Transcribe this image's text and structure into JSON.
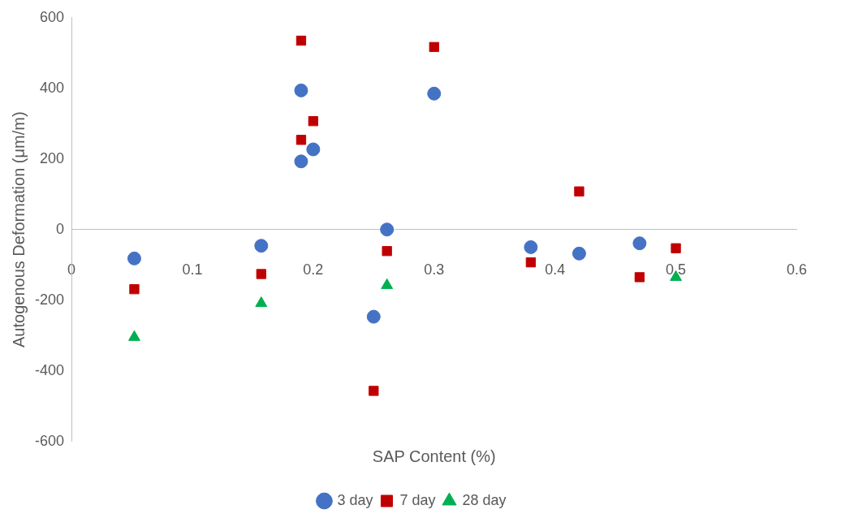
{
  "chart_data": {
    "type": "scatter",
    "xlabel": "SAP Content (%)",
    "ylabel": "Autogenous Deformation (μm/m)",
    "xlim": [
      0,
      0.6
    ],
    "xticks": [
      0,
      0.1,
      0.2,
      0.3,
      0.4,
      0.5,
      0.6
    ],
    "ylim": [
      -600,
      600
    ],
    "yticks": [
      -600,
      -400,
      -200,
      0,
      200,
      400,
      600
    ],
    "grid": false,
    "legend": "bottom",
    "series": [
      {
        "name": "3 day",
        "color": "#4472c4",
        "marker": "circle",
        "x": [
          0.052,
          0.157,
          0.19,
          0.19,
          0.2,
          0.25,
          0.261,
          0.3,
          0.38,
          0.42,
          0.47
        ],
        "values": [
          -82,
          -46,
          394,
          193,
          227,
          -247,
          0,
          385,
          -50,
          -68,
          -39
        ]
      },
      {
        "name": "7 day",
        "color": "#c00000",
        "marker": "square",
        "x": [
          0.052,
          0.157,
          0.19,
          0.19,
          0.2,
          0.25,
          0.261,
          0.3,
          0.38,
          0.42,
          0.47,
          0.5
        ],
        "values": [
          -169,
          -126,
          535,
          254,
          307,
          -457,
          -61,
          517,
          -93,
          108,
          -135,
          -53
        ]
      },
      {
        "name": "28 day",
        "color": "#00b050",
        "marker": "triangle",
        "x": [
          0.052,
          0.157,
          0.261,
          0.5
        ],
        "values": [
          -305,
          -209,
          -158,
          -135
        ]
      }
    ]
  }
}
